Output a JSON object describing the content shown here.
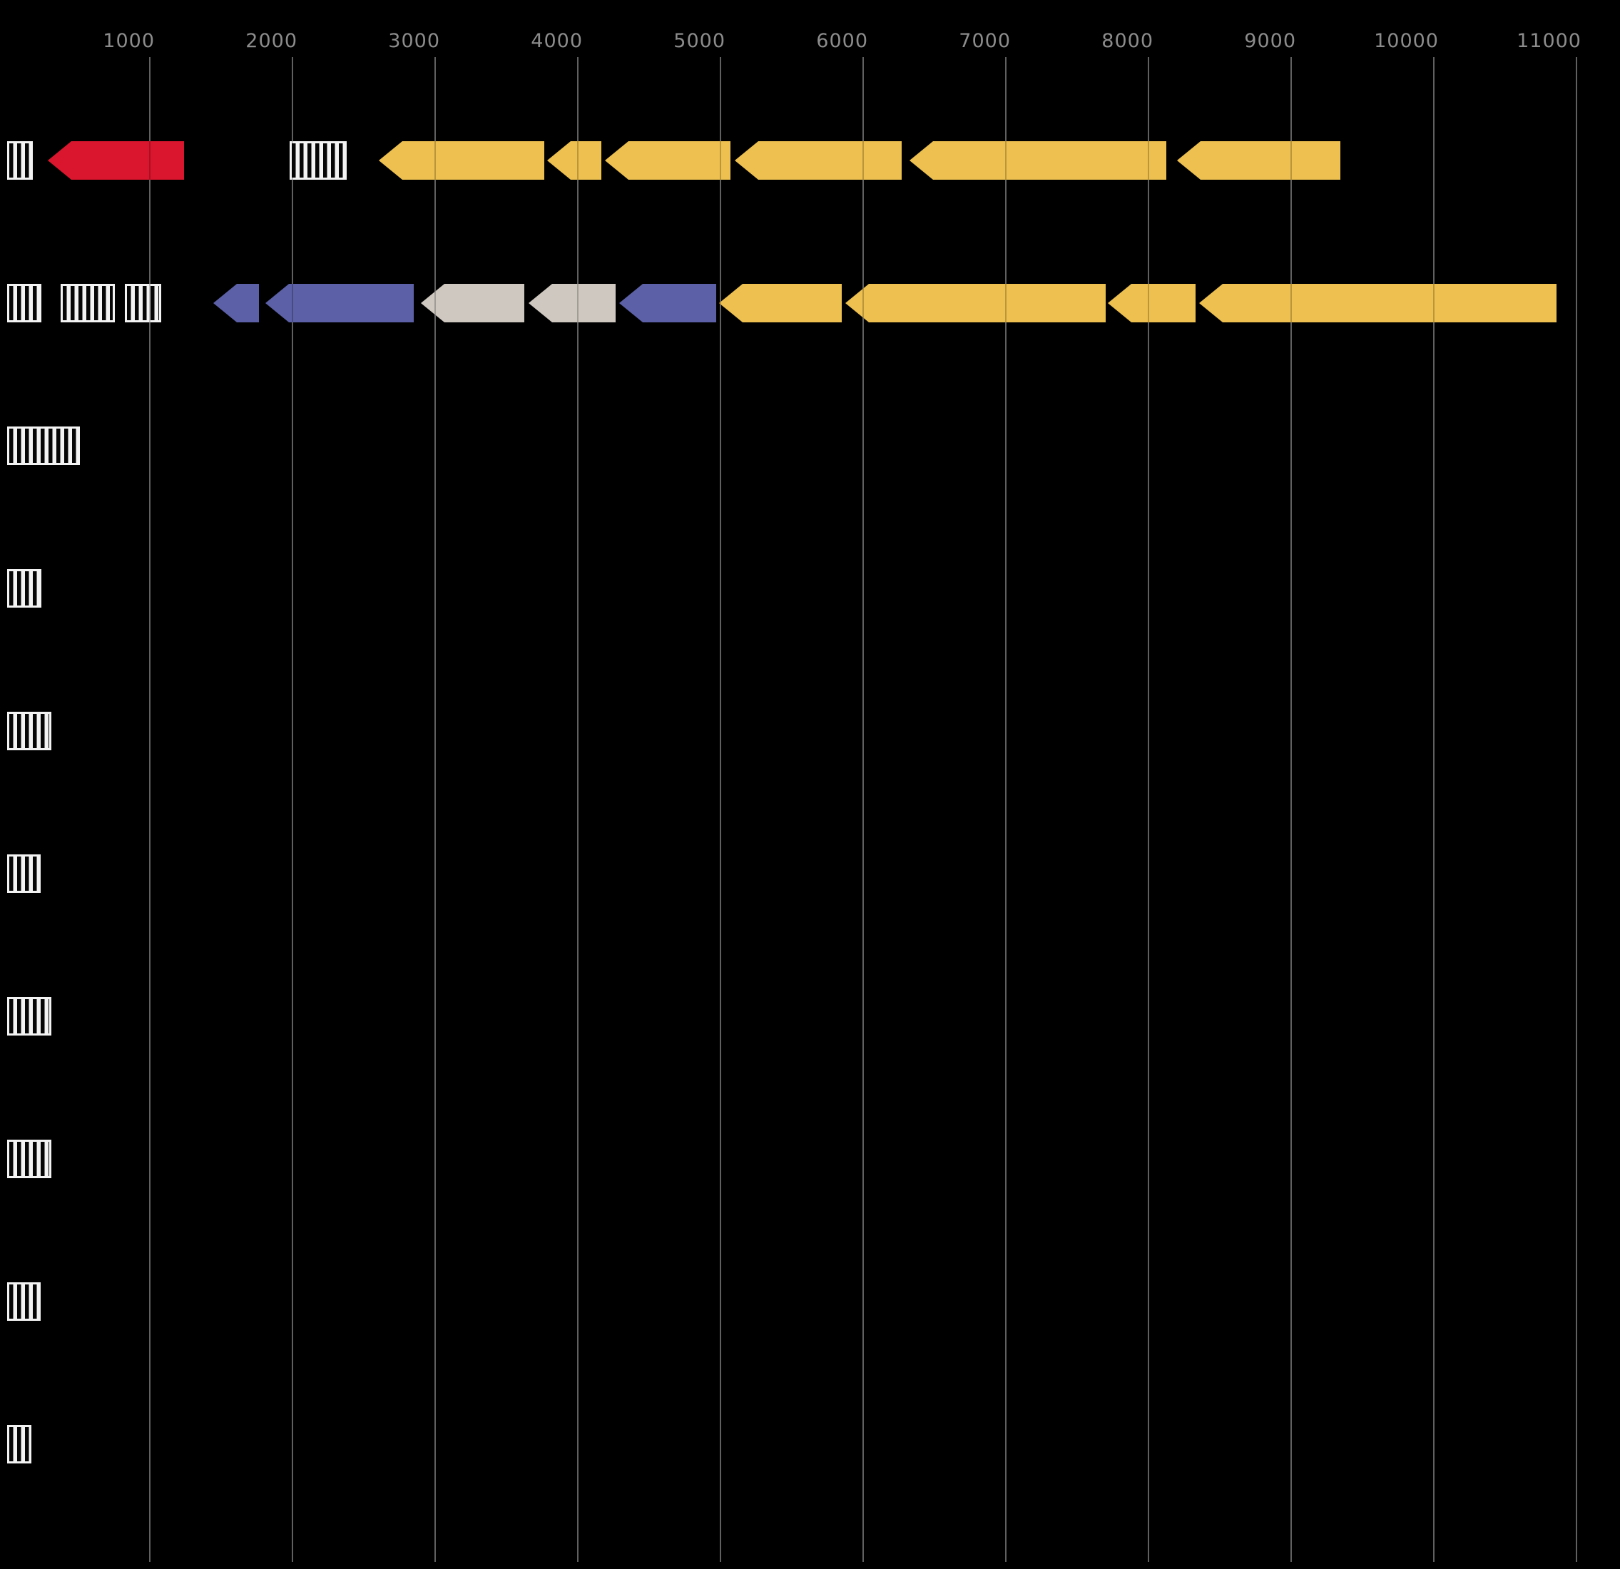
{
  "chart_data": {
    "type": "gene_cluster_arrow_map",
    "title": "",
    "orientation": "all arrows point left (reverse strand)",
    "x_axis": {
      "tick_values": [
        1000,
        2000,
        3000,
        4000,
        5000,
        6000,
        7000,
        8000,
        9000,
        10000,
        11000
      ],
      "tick_labels": [
        "1000",
        "2000",
        "3000",
        "4000",
        "5000",
        "6000",
        "7000",
        "8000",
        "9000",
        "10000",
        "11000"
      ],
      "range": [
        0,
        11300
      ],
      "grid": true,
      "labels_position": "top"
    },
    "colors": {
      "background": "#000000",
      "red": "#d9162d",
      "yellow": "#edc04f",
      "blue": "#5c60a6",
      "gray": "#cfc8c0",
      "grid": "#7b7b7b",
      "tick_label": "#8c8c8c",
      "hatch_fg": "#f3f3f3",
      "hatch_bg": "#060606"
    },
    "rows": [
      {
        "row": 1,
        "features": [
          {
            "kind": "hatch",
            "start": 0,
            "end": 180
          },
          {
            "kind": "gene",
            "color": "red",
            "start": 285,
            "end": 1240,
            "strand": "-"
          },
          {
            "kind": "hatch",
            "start": 1980,
            "end": 2380
          },
          {
            "kind": "gene",
            "color": "yellow",
            "start": 2605,
            "end": 3765,
            "strand": "-"
          },
          {
            "kind": "gene",
            "color": "yellow",
            "start": 3785,
            "end": 4165,
            "strand": "-"
          },
          {
            "kind": "gene",
            "color": "yellow",
            "start": 4190,
            "end": 5070,
            "strand": "-"
          },
          {
            "kind": "gene",
            "color": "yellow",
            "start": 5100,
            "end": 6270,
            "strand": "-"
          },
          {
            "kind": "gene",
            "color": "yellow",
            "start": 6325,
            "end": 8125,
            "strand": "-"
          },
          {
            "kind": "gene",
            "color": "yellow",
            "start": 8200,
            "end": 9345,
            "strand": "-"
          }
        ]
      },
      {
        "row": 2,
        "features": [
          {
            "kind": "hatch",
            "start": 0,
            "end": 240
          },
          {
            "kind": "hatch",
            "start": 375,
            "end": 755
          },
          {
            "kind": "hatch",
            "start": 825,
            "end": 1080
          },
          {
            "kind": "gene",
            "color": "blue",
            "start": 1445,
            "end": 1765,
            "strand": "-"
          },
          {
            "kind": "gene",
            "color": "blue",
            "start": 1810,
            "end": 2850,
            "strand": "-"
          },
          {
            "kind": "gene",
            "color": "gray",
            "start": 2900,
            "end": 3625,
            "strand": "-"
          },
          {
            "kind": "gene",
            "color": "gray",
            "start": 3655,
            "end": 4265,
            "strand": "-"
          },
          {
            "kind": "gene",
            "color": "blue",
            "start": 4290,
            "end": 4970,
            "strand": "-"
          },
          {
            "kind": "gene",
            "color": "yellow",
            "start": 4990,
            "end": 5850,
            "strand": "-"
          },
          {
            "kind": "gene",
            "color": "yellow",
            "start": 5875,
            "end": 7700,
            "strand": "-"
          },
          {
            "kind": "gene",
            "color": "yellow",
            "start": 7715,
            "end": 8330,
            "strand": "-"
          },
          {
            "kind": "gene",
            "color": "yellow",
            "start": 8355,
            "end": 10860,
            "strand": "-"
          }
        ]
      },
      {
        "row": 3,
        "features": [
          {
            "kind": "hatch",
            "start": 0,
            "end": 510
          }
        ]
      },
      {
        "row": 4,
        "features": [
          {
            "kind": "hatch",
            "start": 0,
            "end": 240
          }
        ]
      },
      {
        "row": 5,
        "features": [
          {
            "kind": "hatch",
            "start": 0,
            "end": 310
          }
        ]
      },
      {
        "row": 6,
        "features": [
          {
            "kind": "hatch",
            "start": 0,
            "end": 235
          }
        ]
      },
      {
        "row": 7,
        "features": [
          {
            "kind": "hatch",
            "start": 0,
            "end": 310
          }
        ]
      },
      {
        "row": 8,
        "features": [
          {
            "kind": "hatch",
            "start": 0,
            "end": 310
          }
        ]
      },
      {
        "row": 9,
        "features": [
          {
            "kind": "hatch",
            "start": 0,
            "end": 235
          }
        ]
      },
      {
        "row": 10,
        "features": [
          {
            "kind": "hatch",
            "start": 0,
            "end": 170
          }
        ]
      }
    ]
  }
}
